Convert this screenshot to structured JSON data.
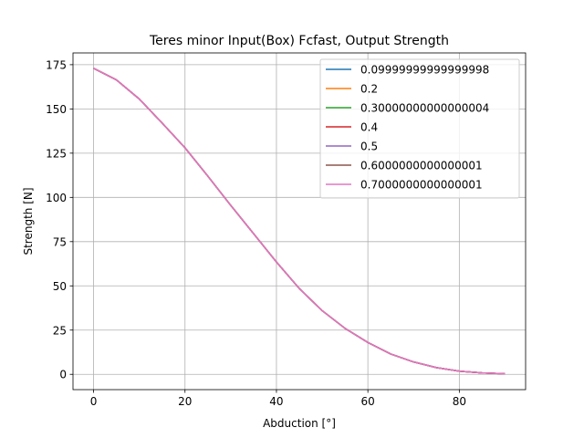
{
  "chart_data": {
    "type": "line",
    "title": "Teres minor Input(Box) Fcfast, Output Strength",
    "xlabel": "Abduction [°]",
    "ylabel": "Strength [N]",
    "xlim": [
      -4.5,
      94.5
    ],
    "ylim": [
      -8.65,
      181.65
    ],
    "xticks": [
      0,
      20,
      40,
      60,
      80
    ],
    "yticks": [
      0,
      25,
      50,
      75,
      100,
      125,
      150,
      175
    ],
    "grid": true,
    "legend_position": "upper right",
    "x": [
      0,
      5,
      10,
      15,
      20,
      25,
      30,
      35,
      40,
      45,
      50,
      55,
      60,
      65,
      70,
      75,
      80,
      85,
      90
    ],
    "series": [
      {
        "name": "0.09999999999999998",
        "color": "#1f77b4",
        "values": [
          173,
          166.4,
          155.6,
          142.0,
          128.0,
          112.0,
          95.5,
          79.5,
          63.5,
          48.5,
          36.0,
          26.0,
          18.0,
          11.5,
          7.0,
          3.8,
          1.8,
          0.8,
          0.3
        ]
      },
      {
        "name": "0.2",
        "color": "#ff7f0e",
        "values": [
          173,
          166.4,
          155.6,
          142.0,
          128.0,
          112.0,
          95.5,
          79.5,
          63.5,
          48.5,
          36.0,
          26.0,
          18.0,
          11.5,
          7.0,
          3.8,
          1.8,
          0.8,
          0.3
        ]
      },
      {
        "name": "0.30000000000000004",
        "color": "#2ca02c",
        "values": [
          173,
          166.4,
          155.6,
          142.0,
          128.0,
          112.0,
          95.5,
          79.5,
          63.5,
          48.5,
          36.0,
          26.0,
          18.0,
          11.5,
          7.0,
          3.8,
          1.8,
          0.8,
          0.3
        ]
      },
      {
        "name": "0.4",
        "color": "#d62728",
        "values": [
          173,
          166.4,
          155.6,
          142.0,
          128.0,
          112.0,
          95.5,
          79.5,
          63.5,
          48.5,
          36.0,
          26.0,
          18.0,
          11.5,
          7.0,
          3.8,
          1.8,
          0.8,
          0.3
        ]
      },
      {
        "name": "0.5",
        "color": "#9467bd",
        "values": [
          173,
          166.4,
          155.6,
          142.0,
          128.0,
          112.0,
          95.5,
          79.5,
          63.5,
          48.5,
          36.0,
          26.0,
          18.0,
          11.5,
          7.0,
          3.8,
          1.8,
          0.8,
          0.3
        ]
      },
      {
        "name": "0.6000000000000001",
        "color": "#8c564b",
        "values": [
          173,
          166.4,
          155.6,
          142.0,
          128.0,
          112.0,
          95.5,
          79.5,
          63.5,
          48.5,
          36.0,
          26.0,
          18.0,
          11.5,
          7.0,
          3.8,
          1.8,
          0.8,
          0.3
        ]
      },
      {
        "name": "0.7000000000000001",
        "color": "#e377c2",
        "values": [
          173,
          166.4,
          155.6,
          142.0,
          128.0,
          112.0,
          95.5,
          79.5,
          63.5,
          48.5,
          36.0,
          26.0,
          18.0,
          11.5,
          7.0,
          3.8,
          1.8,
          0.8,
          0.3
        ]
      }
    ]
  }
}
